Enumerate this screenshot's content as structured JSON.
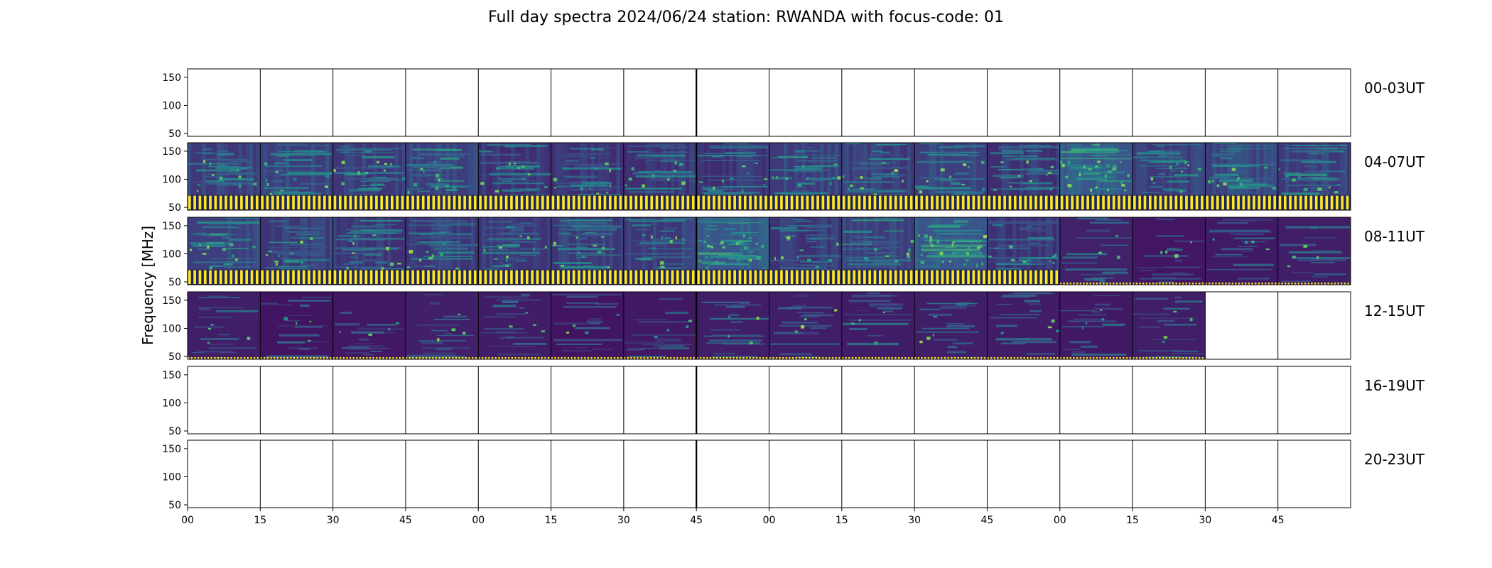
{
  "chart_data": {
    "type": "heatmap",
    "title": "Full day spectra 2024/06/24 station: RWANDA with focus-code: 01",
    "ylabel": "Frequency [MHz]",
    "xlabel": "",
    "ylim": [
      45,
      165
    ],
    "y_ticks": [
      "150",
      "100",
      "50"
    ],
    "x_ticks": [
      "00",
      "15",
      "30",
      "45",
      "00",
      "15",
      "30",
      "45",
      "00",
      "15",
      "30",
      "45",
      "00",
      "15",
      "30",
      "45"
    ],
    "panels_per_row": 16,
    "colormap": "viridis",
    "colors": {
      "low": "#440154",
      "mid": "#21918c",
      "high": "#fde725"
    },
    "rows": [
      {
        "label": "00-03UT",
        "filled_panels": []
      },
      {
        "label": "04-07UT",
        "filled_panels": [
          0,
          1,
          2,
          3,
          4,
          5,
          6,
          7,
          8,
          9,
          10,
          11,
          12,
          13,
          14,
          15
        ],
        "bright_panels": [
          12
        ],
        "striped_panels": [
          0,
          1,
          2,
          3,
          4,
          5,
          6,
          7,
          8,
          9,
          10,
          11,
          12,
          13,
          14,
          15
        ]
      },
      {
        "label": "08-11UT",
        "filled_panels": [
          0,
          1,
          2,
          3,
          4,
          5,
          6,
          7,
          8,
          9,
          10,
          11,
          12,
          13,
          14,
          15
        ],
        "bright_panels": [
          7,
          10
        ],
        "striped_panels": [
          0,
          1,
          2,
          3,
          4,
          5,
          6,
          7,
          8,
          9,
          10,
          11
        ]
      },
      {
        "label": "12-15UT",
        "filled_panels": [
          0,
          1,
          2,
          3,
          4,
          5,
          6,
          7,
          8,
          9,
          10,
          11,
          12,
          13
        ],
        "bright_panels": [],
        "striped_panels": []
      },
      {
        "label": "16-19UT",
        "filled_panels": []
      },
      {
        "label": "20-23UT",
        "filled_panels": []
      }
    ]
  }
}
